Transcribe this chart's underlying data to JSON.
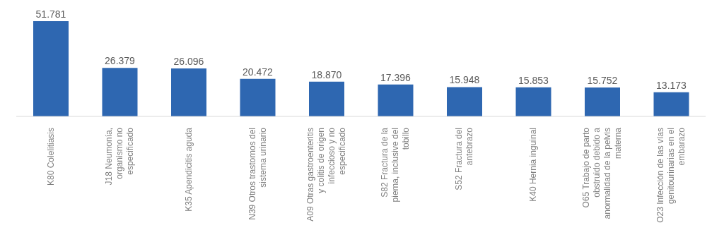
{
  "chart_data": {
    "type": "bar",
    "categories": [
      "K80  Colelitiasis",
      "J18  Neumonía, organismo no especificado",
      "K35  Apendicitis aguda",
      "N39  Otros trastornos del sistema urinario",
      "A09  Otras gastroenteritis y colitis de origen infeccioso y no especificado",
      "S82  Fractura de la pierna, inclusive del tobillo",
      "S52  Fractura del antebrazo",
      "K40  Hernia inguinal",
      "O65 Trabajo de parto obstruido debido a anormalidad de la pelvis materna",
      "O23  Infección de las vías genitourinarias en el embarazo"
    ],
    "values": [
      51781,
      26379,
      26096,
      20472,
      18870,
      17396,
      15948,
      15853,
      15752,
      13173
    ],
    "value_labels": [
      "51.781",
      "26.379",
      "26.096",
      "20.472",
      "18.870",
      "17.396",
      "15.948",
      "15.853",
      "15.752",
      "13.173"
    ],
    "color": "#2e67b1",
    "grid": false,
    "legend": false
  }
}
